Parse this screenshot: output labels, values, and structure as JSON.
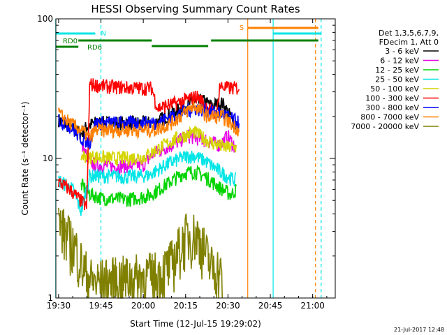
{
  "chart_data": {
    "type": "line",
    "title": "HESSI Observing Summary Count Rates",
    "xlabel": "Start Time (12-Jul-15 19:29:02)",
    "ylabel": "Count Rate (s⁻¹ detector⁻¹)",
    "ylog": true,
    "xlim": [
      "19:29:02",
      "21:08:00"
    ],
    "ylim": [
      1,
      100
    ],
    "x_ticks": [
      "19:30",
      "19:45",
      "20:00",
      "20:15",
      "20:30",
      "20:45",
      "21:00"
    ],
    "y_ticks": [
      "1",
      "10",
      "100"
    ],
    "legend_header": [
      "Det 1,3,5,6,7,9,",
      "FDecim 1, Att 0"
    ],
    "legend_position": "right",
    "series": [
      {
        "name": "3 - 6 keV",
        "color": "#000000",
        "x": [
          "19:30",
          "19:38",
          "19:40",
          "19:43",
          "20:00",
          "20:04",
          "20:08",
          "20:15",
          "20:21",
          "20:24",
          "20:28",
          "20:33"
        ],
        "y": [
          19,
          15,
          17,
          18,
          18,
          18,
          20,
          24,
          26,
          24,
          25,
          17
        ]
      },
      {
        "name": "6 - 12 keV",
        "color": "#e600e6",
        "x": [
          "19:38",
          "19:41",
          "19:43",
          "19:50",
          "20:00",
          "20:04",
          "20:10",
          "20:16",
          "20:22",
          "20:27",
          "20:30",
          "20:33"
        ],
        "y": [
          12.5,
          9.5,
          9.0,
          8.8,
          9.0,
          11.0,
          12.5,
          14.5,
          13.5,
          12.5,
          14.5,
          11.5
        ]
      },
      {
        "name": "12 - 25 keV",
        "color": "#00d400",
        "x": [
          "19:38",
          "19:41",
          "19:45",
          "19:55",
          "20:02",
          "20:08",
          "20:14",
          "20:18",
          "20:22",
          "20:27",
          "20:31",
          "20:33"
        ],
        "y": [
          6.5,
          5.6,
          5.2,
          5.1,
          5.4,
          6.5,
          7.8,
          8.1,
          7.4,
          6.2,
          5.5,
          6.0
        ]
      },
      {
        "name": "25 - 50 keV",
        "color": "#00e5e5",
        "x": [
          "19:30",
          "19:35",
          "19:38",
          "19:41",
          "19:45",
          "19:55",
          "20:02",
          "20:08",
          "20:14",
          "20:18",
          "20:22",
          "20:27",
          "20:31",
          "20:33"
        ],
        "y": [
          7.0,
          6.0,
          4.2,
          7.5,
          7.5,
          7.4,
          7.6,
          9.0,
          10.2,
          10.5,
          9.6,
          8.1,
          7.2,
          7.0
        ]
      },
      {
        "name": "50 - 100 keV",
        "color": "#d4d400",
        "x": [
          "19:38",
          "19:42",
          "19:50",
          "20:00",
          "20:06",
          "20:12",
          "20:18",
          "20:24",
          "20:29",
          "20:33"
        ],
        "y": [
          10.5,
          10.3,
          10.0,
          10.2,
          12.0,
          14.0,
          15.5,
          13.0,
          12.0,
          12.0
        ]
      },
      {
        "name": "100 - 300 keV",
        "color": "#ff0000",
        "x": [
          "19:30",
          "19:34",
          "19:37",
          "19:40",
          "19:41",
          "19:46",
          "19:56",
          "20:03",
          "20:05",
          "20:12",
          "20:19",
          "20:26",
          "20:27",
          "20:30",
          "20:34"
        ],
        "y": [
          6.8,
          6.0,
          5.2,
          4.5,
          34,
          33,
          32,
          32,
          23,
          25,
          28,
          20,
          33,
          32,
          32
        ]
      },
      {
        "name": "300 - 800 keV",
        "color": "#0000ff",
        "x": [
          "19:30",
          "19:34",
          "19:38",
          "19:41",
          "19:43",
          "19:55",
          "20:04",
          "20:10",
          "20:18",
          "20:23",
          "20:28",
          "20:34"
        ],
        "y": [
          19,
          17,
          14,
          13,
          18,
          18,
          18,
          20,
          23,
          22,
          21,
          18
        ]
      },
      {
        "name": "800 - 7000 keV",
        "color": "#ff8000",
        "x": [
          "19:30",
          "19:34",
          "19:38",
          "19:41",
          "19:43",
          "19:55",
          "20:04",
          "20:10",
          "20:18",
          "20:23",
          "20:28",
          "20:34"
        ],
        "y": [
          21,
          18,
          16,
          14,
          16,
          16,
          16,
          18,
          24,
          20,
          20,
          16
        ]
      },
      {
        "name": "7000 - 20000 keV",
        "color": "#808000",
        "x": [
          "19:30",
          "19:33",
          "19:36",
          "19:39",
          "19:42",
          "20:06",
          "20:10",
          "20:15",
          "20:19",
          "20:21",
          "20:24",
          "20:27",
          "20:28"
        ],
        "y": [
          3.5,
          2.8,
          2.3,
          1.6,
          1.3,
          1.5,
          1.8,
          2.8,
          2.9,
          2.4,
          1.7,
          1.6,
          1.3
        ]
      }
    ],
    "status_bars": [
      {
        "label": "N",
        "color": "#00e5e5",
        "segments": [
          [
            "19:29",
            "19:43"
          ]
        ]
      },
      {
        "label": "S",
        "color": "#ff8000",
        "segments": [
          [
            "20:37",
            "21:02"
          ]
        ]
      },
      {
        "label": "RD0",
        "color": "#008000",
        "segments": [
          [
            "19:29",
            "19:37"
          ]
        ]
      },
      {
        "label": "RD6",
        "color": "#008000",
        "segments": [
          [
            "19:37",
            "20:03"
          ],
          [
            "20:24",
            "21:02"
          ]
        ]
      },
      {
        "label": "",
        "color": "#008000",
        "segments": [
          [
            "20:03",
            "20:23"
          ]
        ]
      },
      {
        "label": "",
        "color": "#00e5e5",
        "segments": [
          [
            "20:46",
            "21:03"
          ]
        ]
      }
    ],
    "vlines": [
      {
        "x": "19:29",
        "color": "#00e5e5",
        "style": "solid"
      },
      {
        "x": "19:45",
        "color": "#00e5e5",
        "style": "dashed"
      },
      {
        "x": "20:37",
        "color": "#ff8000",
        "style": "solid"
      },
      {
        "x": "20:46",
        "color": "#00e5e5",
        "style": "solid"
      },
      {
        "x": "21:01",
        "color": "#ff8000",
        "style": "dashed"
      },
      {
        "x": "21:03",
        "color": "#00e5e5",
        "style": "dashed"
      }
    ]
  },
  "footer": {
    "timestamp": "21-Jul-2017 12:48"
  }
}
